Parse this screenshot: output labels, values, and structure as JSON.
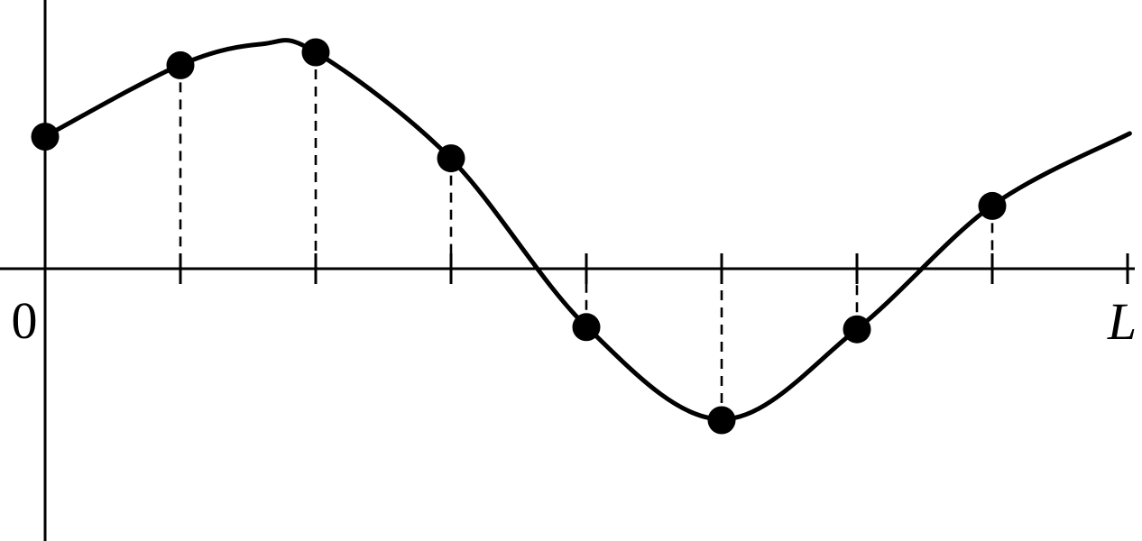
{
  "figure": {
    "background": "#ffffff",
    "ink_color": "#000000"
  },
  "chart_data": {
    "type": "line",
    "description": "Smooth periodic curve on the interval [0, L] sampled at 8 equally spaced points marked by filled dots with dashed droplines to the x-axis",
    "x_axis": {
      "min_label": "0",
      "max_label": "L",
      "interval_count": 8,
      "tick_positions_fraction_of_L": [
        0.125,
        0.25,
        0.375,
        0.5,
        0.625,
        0.75,
        0.875,
        1.0
      ],
      "gridlines": false
    },
    "y_axis": {
      "tick_labels": []
    },
    "samples": {
      "x_fractions_of_L": [
        0,
        0.125,
        0.25,
        0.375,
        0.5,
        0.625,
        0.75,
        0.875
      ],
      "values": [
        0.61,
        0.94,
        1.0,
        0.51,
        -0.27,
        -0.7,
        -0.28,
        0.29
      ]
    },
    "curve_anchors": [
      [
        0,
        0.612
      ],
      [
        0.125,
        0.942
      ],
      [
        0.2,
        1.038
      ],
      [
        0.25,
        1.0
      ],
      [
        0.375,
        0.508
      ],
      [
        0.5,
        -0.267
      ],
      [
        0.625,
        -0.696
      ],
      [
        0.75,
        -0.279
      ],
      [
        0.875,
        0.292
      ],
      [
        1.002,
        0.625
      ]
    ],
    "style": {
      "marker": "filled-circle",
      "dropline": "dashed",
      "legend": "none"
    }
  }
}
